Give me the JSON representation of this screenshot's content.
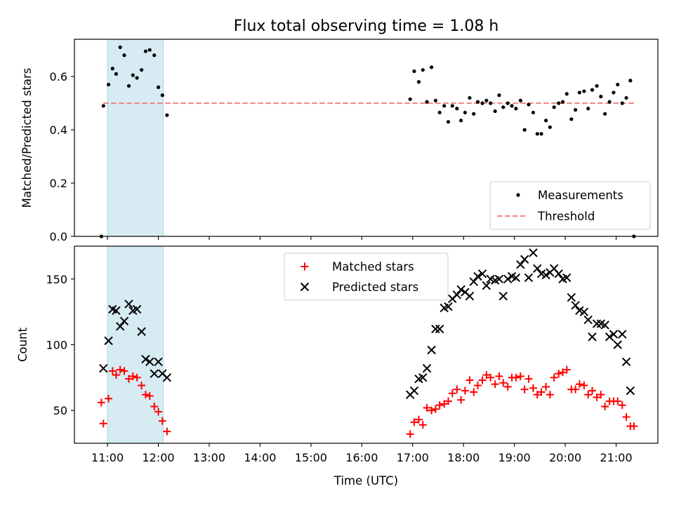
{
  "chart_data": [
    {
      "type": "scatter",
      "title": "Flux total observing time = 1.08 h",
      "xlabel": "",
      "ylabel": "Matched/Predicted stars",
      "ylim": [
        0,
        0.74
      ],
      "yticks": [
        "0.0",
        "0.2",
        "0.4",
        "0.6"
      ],
      "x_unit": "hours (UTC)",
      "threshold": 0.5,
      "highlight_span": [
        11.0,
        12.1
      ],
      "colors": {
        "measurements": "#000000",
        "threshold": "#f08080",
        "span": "#add8e6"
      },
      "legend": {
        "position": "lower right",
        "entries": [
          "Measurements",
          "Threshold"
        ]
      },
      "series": [
        {
          "name": "Measurements",
          "points": [
            [
              10.88,
              0.0
            ],
            [
              10.92,
              0.49
            ],
            [
              11.02,
              0.57
            ],
            [
              11.1,
              0.63
            ],
            [
              11.17,
              0.61
            ],
            [
              11.25,
              0.71
            ],
            [
              11.33,
              0.68
            ],
            [
              11.42,
              0.565
            ],
            [
              11.5,
              0.605
            ],
            [
              11.58,
              0.595
            ],
            [
              11.67,
              0.625
            ],
            [
              11.75,
              0.695
            ],
            [
              11.83,
              0.7
            ],
            [
              11.92,
              0.68
            ],
            [
              12.0,
              0.56
            ],
            [
              12.08,
              0.53
            ],
            [
              12.17,
              0.455
            ],
            [
              16.95,
              0.515
            ],
            [
              17.03,
              0.62
            ],
            [
              17.12,
              0.58
            ],
            [
              17.2,
              0.625
            ],
            [
              17.28,
              0.505
            ],
            [
              17.37,
              0.635
            ],
            [
              17.45,
              0.51
            ],
            [
              17.53,
              0.465
            ],
            [
              17.62,
              0.49
            ],
            [
              17.7,
              0.43
            ],
            [
              17.78,
              0.49
            ],
            [
              17.87,
              0.48
            ],
            [
              17.95,
              0.435
            ],
            [
              18.03,
              0.465
            ],
            [
              18.12,
              0.52
            ],
            [
              18.2,
              0.46
            ],
            [
              18.28,
              0.505
            ],
            [
              18.37,
              0.5
            ],
            [
              18.45,
              0.51
            ],
            [
              18.53,
              0.5
            ],
            [
              18.62,
              0.47
            ],
            [
              18.7,
              0.53
            ],
            [
              18.78,
              0.485
            ],
            [
              18.87,
              0.5
            ],
            [
              18.95,
              0.49
            ],
            [
              19.03,
              0.48
            ],
            [
              19.12,
              0.51
            ],
            [
              19.2,
              0.4
            ],
            [
              19.28,
              0.495
            ],
            [
              19.37,
              0.465
            ],
            [
              19.45,
              0.385
            ],
            [
              19.53,
              0.385
            ],
            [
              19.62,
              0.435
            ],
            [
              19.7,
              0.41
            ],
            [
              19.78,
              0.485
            ],
            [
              19.87,
              0.5
            ],
            [
              19.95,
              0.505
            ],
            [
              20.03,
              0.535
            ],
            [
              20.12,
              0.44
            ],
            [
              20.2,
              0.475
            ],
            [
              20.28,
              0.54
            ],
            [
              20.37,
              0.545
            ],
            [
              20.45,
              0.48
            ],
            [
              20.53,
              0.55
            ],
            [
              20.62,
              0.565
            ],
            [
              20.7,
              0.525
            ],
            [
              20.78,
              0.46
            ],
            [
              20.87,
              0.505
            ],
            [
              20.95,
              0.54
            ],
            [
              21.03,
              0.57
            ],
            [
              21.12,
              0.5
            ],
            [
              21.2,
              0.52
            ],
            [
              21.28,
              0.585
            ],
            [
              21.35,
              0.0
            ]
          ]
        }
      ]
    },
    {
      "type": "scatter",
      "title": "",
      "xlabel": "Time (UTC)",
      "ylabel": "Count",
      "ylim": [
        25,
        175
      ],
      "yticks": [
        "50",
        "100",
        "150"
      ],
      "xticks": [
        "11:00",
        "12:00",
        "13:00",
        "14:00",
        "15:00",
        "16:00",
        "17:00",
        "18:00",
        "19:00",
        "20:00",
        "21:00"
      ],
      "highlight_span": [
        11.0,
        12.1
      ],
      "colors": {
        "matched": "#ff0000",
        "predicted": "#000000",
        "span": "#add8e6"
      },
      "legend": {
        "position": "upper center",
        "entries": [
          "Matched stars",
          "Predicted stars"
        ]
      },
      "series": [
        {
          "name": "Matched stars",
          "points": [
            [
              10.88,
              56
            ],
            [
              10.92,
              40
            ],
            [
              11.02,
              59
            ],
            [
              11.1,
              80
            ],
            [
              11.17,
              77
            ],
            [
              11.25,
              81
            ],
            [
              11.33,
              80
            ],
            [
              11.42,
              74
            ],
            [
              11.5,
              76
            ],
            [
              11.58,
              75
            ],
            [
              11.67,
              69
            ],
            [
              11.75,
              62
            ],
            [
              11.83,
              61
            ],
            [
              11.92,
              53
            ],
            [
              12.0,
              49
            ],
            [
              12.08,
              42
            ],
            [
              12.17,
              34
            ],
            [
              16.95,
              32
            ],
            [
              17.03,
              41
            ],
            [
              17.12,
              43
            ],
            [
              17.2,
              39
            ],
            [
              17.28,
              52
            ],
            [
              17.37,
              50
            ],
            [
              17.45,
              51
            ],
            [
              17.53,
              54
            ],
            [
              17.62,
              55
            ],
            [
              17.7,
              57
            ],
            [
              17.78,
              63
            ],
            [
              17.87,
              66
            ],
            [
              17.95,
              58
            ],
            [
              18.03,
              65
            ],
            [
              18.12,
              73
            ],
            [
              18.2,
              64
            ],
            [
              18.28,
              69
            ],
            [
              18.37,
              73
            ],
            [
              18.45,
              77
            ],
            [
              18.53,
              75
            ],
            [
              18.62,
              70
            ],
            [
              18.7,
              76
            ],
            [
              18.78,
              71
            ],
            [
              18.87,
              68
            ],
            [
              18.95,
              75
            ],
            [
              19.03,
              75
            ],
            [
              19.12,
              76
            ],
            [
              19.2,
              66
            ],
            [
              19.28,
              74
            ],
            [
              19.37,
              67
            ],
            [
              19.45,
              62
            ],
            [
              19.53,
              64
            ],
            [
              19.62,
              68
            ],
            [
              19.7,
              62
            ],
            [
              19.78,
              75
            ],
            [
              19.87,
              78
            ],
            [
              19.95,
              79
            ],
            [
              20.03,
              81
            ],
            [
              20.12,
              66
            ],
            [
              20.2,
              66
            ],
            [
              20.28,
              70
            ],
            [
              20.37,
              69
            ],
            [
              20.45,
              62
            ],
            [
              20.53,
              65
            ],
            [
              20.62,
              60
            ],
            [
              20.7,
              62
            ],
            [
              20.78,
              53
            ],
            [
              20.87,
              57
            ],
            [
              20.95,
              57
            ],
            [
              21.03,
              57
            ],
            [
              21.12,
              54
            ],
            [
              21.2,
              45
            ],
            [
              21.28,
              38
            ],
            [
              21.35,
              38
            ]
          ]
        },
        {
          "name": "Predicted stars",
          "points": [
            [
              10.92,
              82
            ],
            [
              11.02,
              103
            ],
            [
              11.1,
              127
            ],
            [
              11.17,
              126
            ],
            [
              11.25,
              114
            ],
            [
              11.33,
              118
            ],
            [
              11.42,
              131
            ],
            [
              11.5,
              126
            ],
            [
              11.58,
              127
            ],
            [
              11.67,
              110
            ],
            [
              11.75,
              89
            ],
            [
              11.83,
              87
            ],
            [
              11.92,
              78
            ],
            [
              12.0,
              87
            ],
            [
              12.08,
              78
            ],
            [
              12.17,
              75
            ],
            [
              16.95,
              62
            ],
            [
              17.03,
              65
            ],
            [
              17.12,
              74
            ],
            [
              17.2,
              75
            ],
            [
              17.28,
              82
            ],
            [
              17.37,
              96
            ],
            [
              17.45,
              112
            ],
            [
              17.53,
              112
            ],
            [
              17.62,
              128
            ],
            [
              17.7,
              129
            ],
            [
              17.78,
              135
            ],
            [
              17.87,
              138
            ],
            [
              17.95,
              142
            ],
            [
              18.03,
              140
            ],
            [
              18.12,
              137
            ],
            [
              18.2,
              148
            ],
            [
              18.28,
              152
            ],
            [
              18.37,
              154
            ],
            [
              18.45,
              145
            ],
            [
              18.53,
              150
            ],
            [
              18.62,
              149
            ],
            [
              18.7,
              150
            ],
            [
              18.78,
              137
            ],
            [
              18.87,
              150
            ],
            [
              18.95,
              152
            ],
            [
              19.03,
              151
            ],
            [
              19.12,
              161
            ],
            [
              19.2,
              165
            ],
            [
              19.28,
              151
            ],
            [
              19.37,
              170
            ],
            [
              19.45,
              158
            ],
            [
              19.53,
              154
            ],
            [
              19.62,
              153
            ],
            [
              19.7,
              155
            ],
            [
              19.78,
              158
            ],
            [
              19.87,
              154
            ],
            [
              19.95,
              150
            ],
            [
              20.03,
              151
            ],
            [
              20.12,
              136
            ],
            [
              20.2,
              130
            ],
            [
              20.28,
              126
            ],
            [
              20.37,
              125
            ],
            [
              20.45,
              119
            ],
            [
              20.53,
              106
            ],
            [
              20.62,
              116
            ],
            [
              20.7,
              116
            ],
            [
              20.78,
              115
            ],
            [
              20.87,
              106
            ],
            [
              20.95,
              108
            ],
            [
              21.03,
              100
            ],
            [
              21.12,
              108
            ],
            [
              21.2,
              87
            ],
            [
              21.28,
              65
            ]
          ]
        }
      ]
    }
  ]
}
